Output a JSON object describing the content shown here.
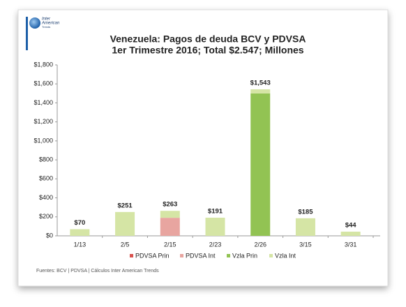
{
  "logo": [
    "Inter",
    "American",
    "Trends"
  ],
  "chart_data": {
    "type": "stacked-bar",
    "title": [
      "Venezuela: Pagos de deuda BCV y PDVSA",
      "1er Trimestre 2016; Total $2.547; Millones"
    ],
    "categories": [
      "1/13",
      "2/5",
      "2/15",
      "2/23",
      "2/26",
      "3/15",
      "3/31"
    ],
    "series": [
      {
        "name": "PDVSA Prin",
        "color": "#d9534f",
        "values": [
          0,
          0,
          0,
          0,
          0,
          0,
          0
        ]
      },
      {
        "name": "PDVSA Int",
        "color": "#e8a5a0",
        "values": [
          0,
          0,
          190,
          0,
          0,
          0,
          0
        ]
      },
      {
        "name": "Vzla Prin",
        "color": "#92c353",
        "values": [
          0,
          0,
          0,
          0,
          1500,
          0,
          0
        ]
      },
      {
        "name": "Vzla Int",
        "color": "#d5e5a5",
        "values": [
          70,
          251,
          73,
          191,
          43,
          185,
          44
        ]
      }
    ],
    "totals": [
      70,
      251,
      263,
      191,
      1543,
      185,
      44
    ],
    "total_labels": [
      "$70",
      "$251",
      "$263",
      "$191",
      "$1,543",
      "$185",
      "$44"
    ],
    "ylim": [
      0,
      1800
    ],
    "yticks": [
      {
        "value": 0,
        "label": "$0"
      },
      {
        "value": 200,
        "label": "$200"
      },
      {
        "value": 400,
        "label": "$400"
      },
      {
        "value": 600,
        "label": "$600"
      },
      {
        "value": 800,
        "label": "$800"
      },
      {
        "value": 1000,
        "label": "$1,000"
      },
      {
        "value": 1200,
        "label": "$1,200"
      },
      {
        "value": 1400,
        "label": "$1,400"
      },
      {
        "value": 1600,
        "label": "$1,600"
      },
      {
        "value": 1800,
        "label": "$1,800"
      }
    ],
    "grid": false,
    "legend": "bottom",
    "source": "Fuentes: BCV | PDVSA | Cálculos Inter American Trends"
  }
}
